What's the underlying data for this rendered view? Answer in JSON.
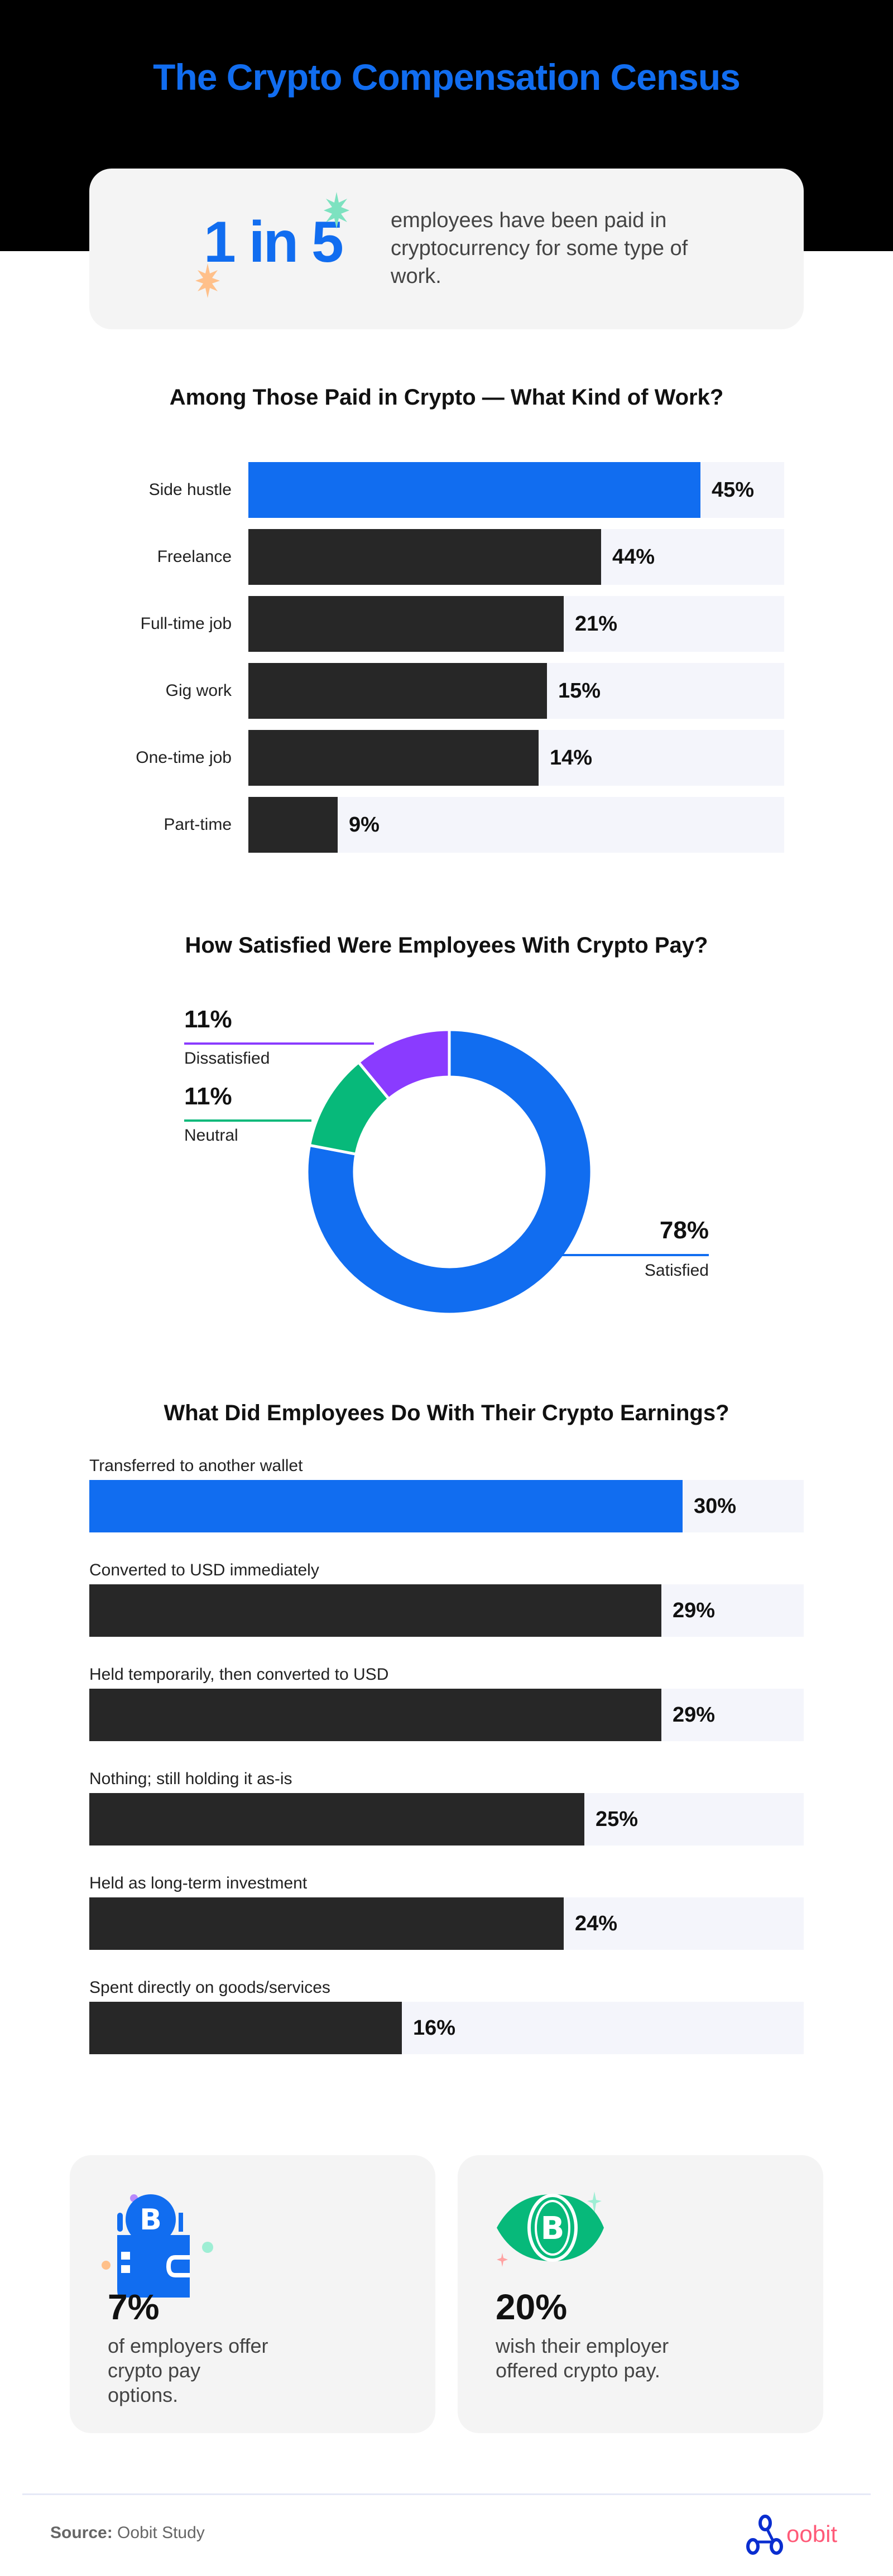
{
  "header": {
    "title": "The Crypto Compensation Census"
  },
  "intro_stat": {
    "big": "1 in 5",
    "text": "employees have been paid in cryptocurrency for some type of work."
  },
  "work_chart": {
    "title": "Among Those Paid in Crypto — What Kind of Work?"
  },
  "satisfaction_chart": {
    "title": "How Satisfied Were Employees With Crypto Pay?"
  },
  "earnings_chart": {
    "title": "What Did Employees Do With Their Crypto Earnings?"
  },
  "bottom_cards": [
    {
      "pct": "7%",
      "text": "of employers offer crypto pay options.",
      "icon": "bitcoin-wallet-icon"
    },
    {
      "pct": "20%",
      "text": "wish their employer offered crypto pay.",
      "icon": "bitcoin-eye-icon"
    }
  ],
  "footer": {
    "source_label": "Source:",
    "source_value": "Oobit Study",
    "logo_text": "oobit"
  },
  "colors": {
    "accent_blue": "#116DF0",
    "bar_dark": "#272727",
    "track": "#F4F5FB",
    "green": "#07B97A",
    "purple": "#8A3BFF",
    "card_bg": "#F4F4F4",
    "logo_blue": "#0A2ED0",
    "logo_pink": "#FF5A78"
  },
  "chart_data": [
    {
      "type": "bar",
      "orientation": "horizontal",
      "title": "Among Those Paid in Crypto — What Kind of Work?",
      "categories": [
        "Side hustle",
        "Freelance",
        "Full-time job",
        "Gig work",
        "One-time job",
        "Part-time"
      ],
      "values": [
        45,
        44,
        21,
        15,
        14,
        9
      ],
      "labels": [
        "45%",
        "44%",
        "21%",
        "15%",
        "14%",
        "9%"
      ],
      "highlight_index": 0,
      "unit": "%",
      "xlabel": "",
      "ylabel": ""
    },
    {
      "type": "pie",
      "style": "donut",
      "title": "How Satisfied Were Employees With Crypto Pay?",
      "categories": [
        "Satisfied",
        "Neutral",
        "Dissatisfied"
      ],
      "values": [
        78,
        11,
        11
      ],
      "labels": [
        "78%",
        "11%",
        "11%"
      ],
      "colors": [
        "#116DF0",
        "#07B97A",
        "#8A3BFF"
      ]
    },
    {
      "type": "bar",
      "orientation": "horizontal",
      "title": "What Did Employees Do With Their Crypto Earnings?",
      "categories": [
        "Transferred to another wallet",
        "Converted to USD immediately",
        "Held temporarily, then converted to USD",
        "Nothing; still holding it as-is",
        "Held as long-term investment",
        "Spent directly on goods/services"
      ],
      "values": [
        30,
        29,
        29,
        25,
        24,
        16
      ],
      "labels": [
        "30%",
        "29%",
        "29%",
        "25%",
        "24%",
        "16%"
      ],
      "highlight_index": 0,
      "unit": "%",
      "xlabel": "",
      "ylabel": ""
    }
  ]
}
